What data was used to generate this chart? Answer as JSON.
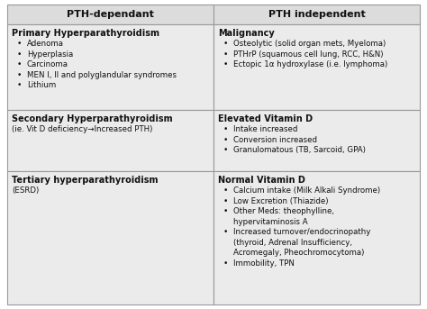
{
  "header": [
    "PTH-dependant",
    "PTH independent"
  ],
  "header_bg": "#dcdcdc",
  "cell_bg": "#ebebeb",
  "border_color": "#999999",
  "text_color": "#111111",
  "rows": [
    {
      "left_title": "Primary Hyperparathyroidism",
      "left_body": [
        "Adenoma",
        "Hyperplasia",
        "Carcinoma",
        "MEN I, II and polyglandular syndromes",
        "Lithium"
      ],
      "left_plain": null,
      "right_title": "Malignancy",
      "right_body": [
        "Osteolytic (solid organ mets, Myeloma)",
        "PTHrP (squamous cell lung, RCC, H&N)",
        "Ectopic 1α hydroxylase (i.e. lymphoma)"
      ],
      "right_plain": null
    },
    {
      "left_title": "Secondary Hyperparathyroidism",
      "left_body": null,
      "left_plain": "(ie. Vit D deficiency→Increased PTH)",
      "right_title": "Elevated Vitamin D",
      "right_body": [
        "Intake increased",
        "Conversion increased",
        "Granulomatous (TB, Sarcoid, GPA)"
      ],
      "right_plain": null
    },
    {
      "left_title": "Tertiary hyperparathyroidism",
      "left_body": null,
      "left_plain": "(ESRD)",
      "right_title": "Normal Vitamin D",
      "right_body": [
        "Calcium intake (Milk Alkali Syndrome)",
        "Low Excretion (Thiazide)",
        "Other Meds: theophylline,\nhypervitaminosis A",
        "Increased turnover/endocrinopathy\n(thyroid, Adrenal Insufficiency,\nAcromegaly, Pheochromocytoma)",
        "Immobility, TPN"
      ],
      "right_plain": null
    }
  ],
  "figsize": [
    4.74,
    3.43
  ],
  "dpi": 100,
  "title_fontsize": 7.0,
  "body_fontsize": 6.2,
  "header_fontsize": 8.0
}
